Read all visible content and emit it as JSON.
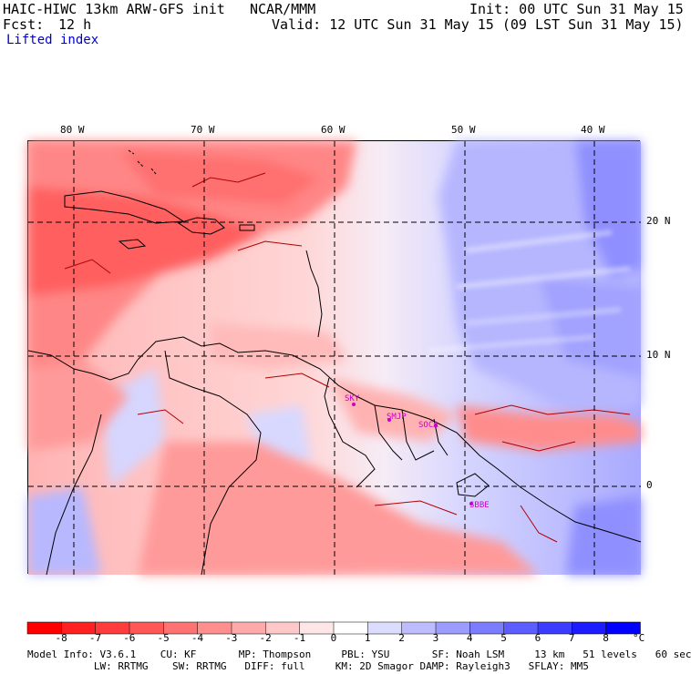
{
  "header": {
    "model": "HAIC-HIWC 13km ARW-GFS init",
    "org": "NCAR/MMM",
    "init": "Init: 00 UTC Sun 31 May 15",
    "fcst_label": "Fcst:",
    "fcst_value": "12 h",
    "valid": "Valid: 12 UTC Sun 31 May 15 (09 LST Sun 31 May 15)",
    "field": "Lifted index"
  },
  "map": {
    "lon_labels": [
      "80 W",
      "70 W",
      "60 W",
      "50 W",
      "40 W"
    ],
    "lat_labels": [
      "20 N",
      "10 N",
      "0"
    ],
    "stations": [
      {
        "id": "SKY",
        "color": "#cc00cc"
      },
      {
        "id": "SMJP",
        "color": "#cc00cc"
      },
      {
        "id": "SOCA",
        "color": "#cc00cc"
      },
      {
        "id": "SBBE",
        "color": "#cc00cc"
      }
    ]
  },
  "colorbar": {
    "labels": [
      "-8",
      "-7",
      "-6",
      "-5",
      "-4",
      "-3",
      "-2",
      "-1",
      "0",
      "1",
      "2",
      "3",
      "4",
      "5",
      "6",
      "7",
      "8"
    ],
    "unit": "°C",
    "colors": [
      "#ff0000",
      "#ff2121",
      "#ff3c3c",
      "#ff5656",
      "#ff7272",
      "#ff8e8e",
      "#ffaaaa",
      "#ffc8c8",
      "#ffe6e6",
      "#ffffff",
      "#dcdcff",
      "#bcbcff",
      "#9c9cff",
      "#7c7cff",
      "#5c5cff",
      "#3c3cff",
      "#1c1cff",
      "#0000ff"
    ]
  },
  "footer": {
    "line1": "Model Info: V3.6.1    CU: KF       MP: Thompson     PBL: YSU       SF: Noah LSM     13 km   51 levels   60 sec",
    "line2": "           LW: RRTMG    SW: RRTMG   DIFF: full     KM: 2D Smagor DAMP: Rayleigh3   SFLAY: MM5"
  }
}
